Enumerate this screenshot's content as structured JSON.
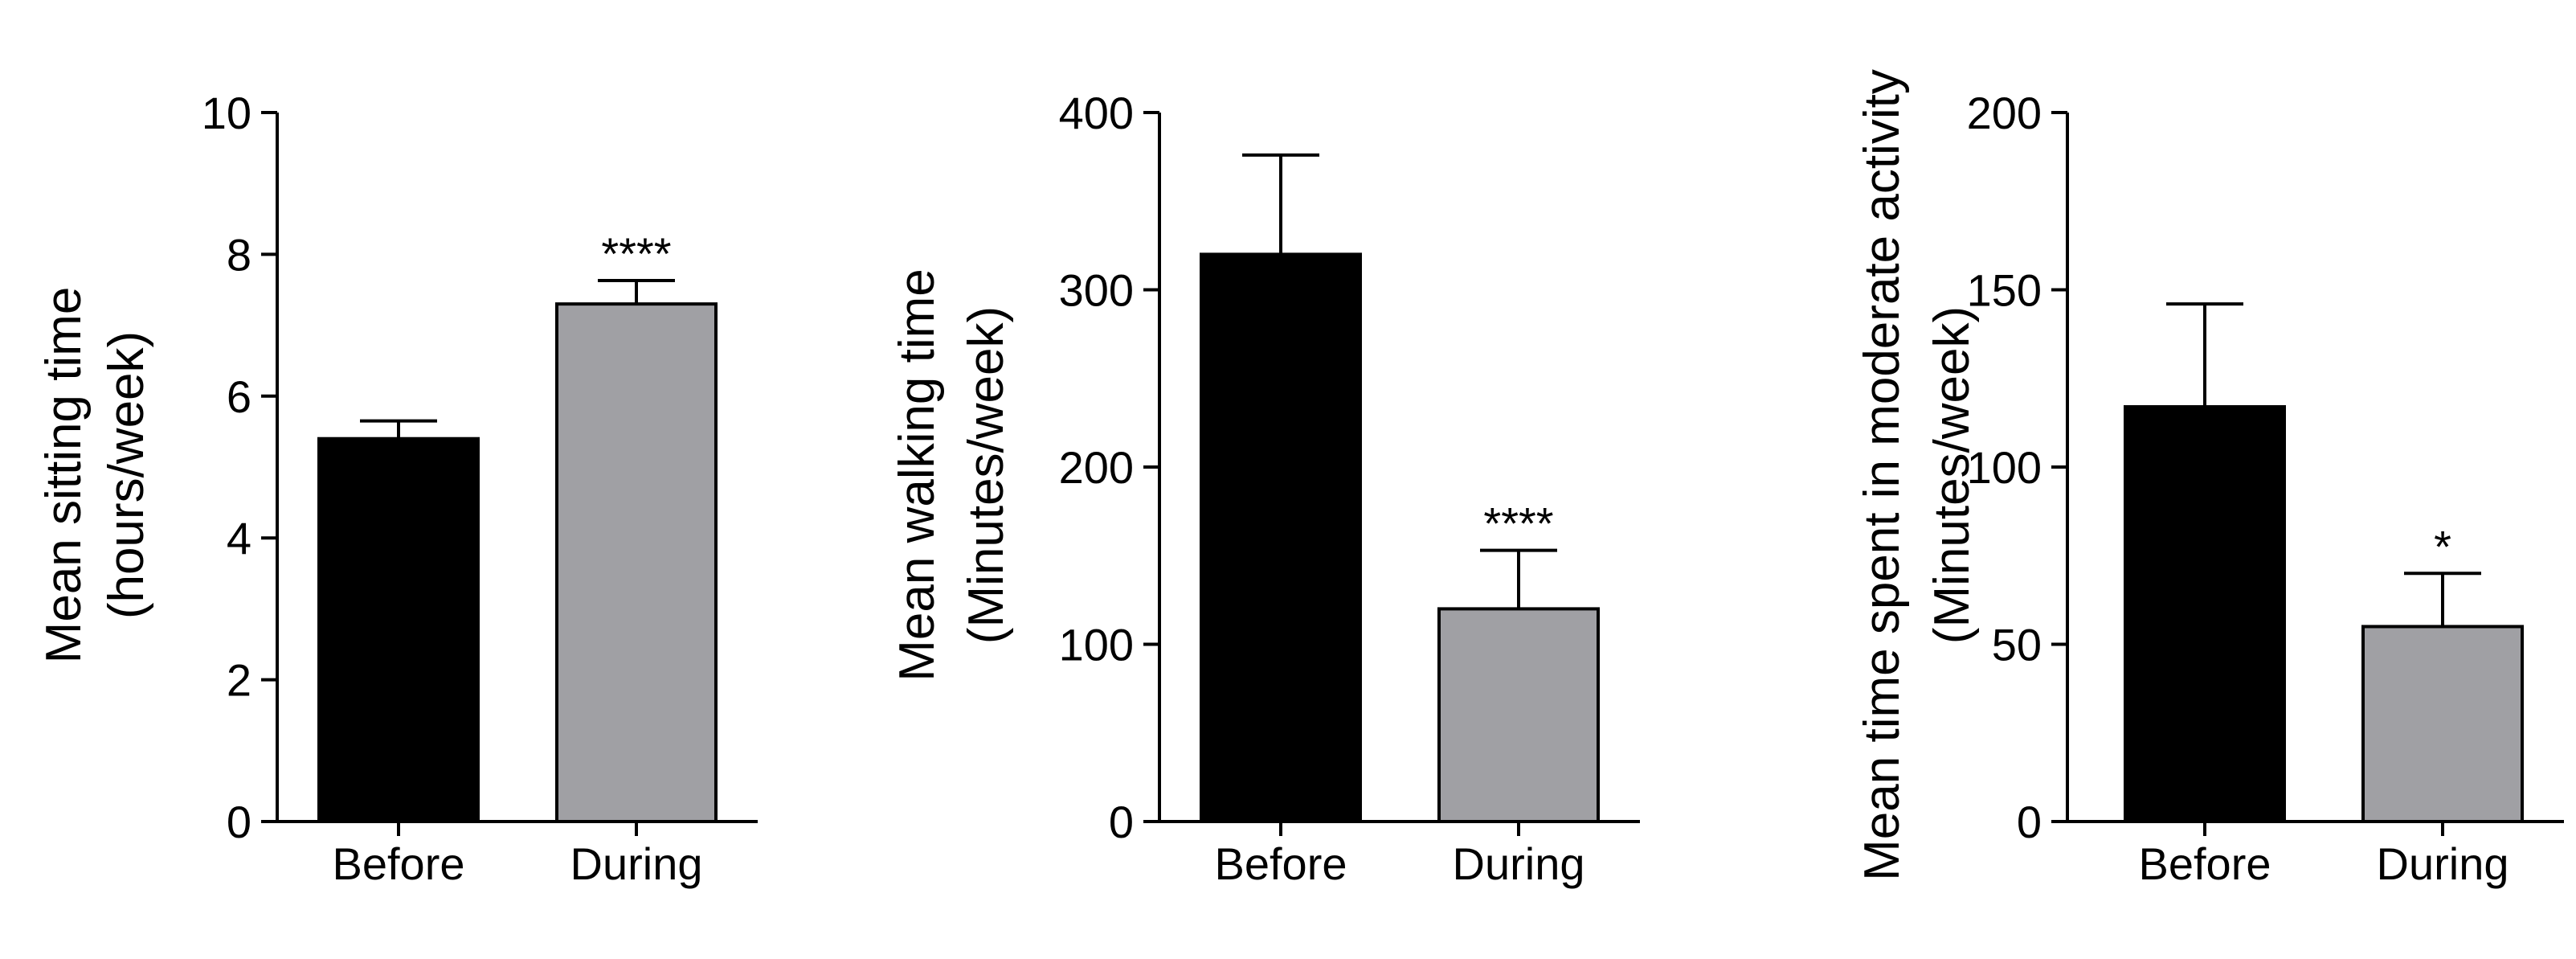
{
  "chart_data": [
    {
      "type": "bar",
      "categories": [
        "Before",
        "During"
      ],
      "values": [
        5.4,
        7.3
      ],
      "errors": [
        0.25,
        0.33
      ],
      "significance": [
        "",
        "****"
      ],
      "bar_colors": [
        "#000000",
        "#a0a0a4"
      ],
      "title": "",
      "ylabel": [
        "Mean sitting time",
        "(hours/week)"
      ],
      "ylim": [
        0,
        10
      ],
      "yticks": [
        0,
        2,
        4,
        6,
        8,
        10
      ],
      "grid": false
    },
    {
      "type": "bar",
      "categories": [
        "Before",
        "During"
      ],
      "values": [
        320,
        120
      ],
      "errors": [
        56,
        33
      ],
      "significance": [
        "",
        "****"
      ],
      "bar_colors": [
        "#000000",
        "#a0a0a4"
      ],
      "title": "",
      "ylabel": [
        "Mean walking time",
        "(Minutes/week)"
      ],
      "ylim": [
        0,
        400
      ],
      "yticks": [
        0,
        100,
        200,
        300,
        400
      ],
      "grid": false
    },
    {
      "type": "bar",
      "categories": [
        "Before",
        "During"
      ],
      "values": [
        117,
        55
      ],
      "errors": [
        29,
        15
      ],
      "significance": [
        "",
        "*"
      ],
      "bar_colors": [
        "#000000",
        "#a0a0a4"
      ],
      "title": "",
      "ylabel": [
        "Mean time spent in moderate activity",
        "(Minutes/week)"
      ],
      "ylim": [
        0,
        200
      ],
      "yticks": [
        0,
        50,
        100,
        150,
        200
      ],
      "grid": false
    }
  ]
}
